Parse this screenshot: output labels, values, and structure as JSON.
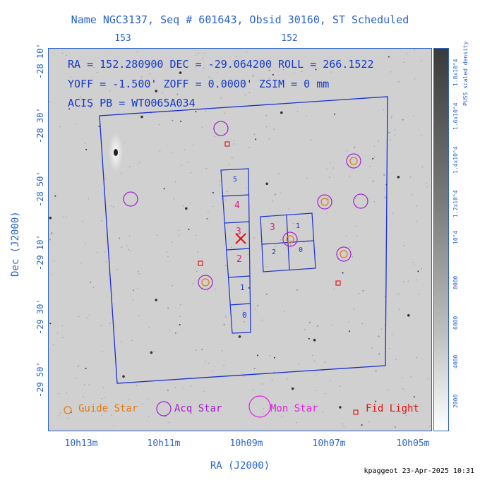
{
  "title": "Name NGC3137, Seq # 601643, Obsid 30160, ST Scheduled",
  "top_axis": [
    "153",
    "152"
  ],
  "bottom_axis": [
    "10h13m",
    "10h11m",
    "10h09m",
    "10h07m",
    "10h05m"
  ],
  "left_axis": [
    "-28 10'",
    "-28 30'",
    "-28 50'",
    "-29 10'",
    "-29 30'",
    "-29 50'"
  ],
  "y_axis_label": "Dec (J2000)",
  "x_axis_label": "RA (J2000)",
  "info": {
    "line1": "RA = 152.280900    DEC = -29.064200   ROLL = 266.1522",
    "line2": "YOFF =  -1.500'    ZOFF =  0.0000'    ZSIM = 0 mm",
    "line3": "ACIS PB = WT0065A034"
  },
  "chips": [
    "5",
    "4",
    "3",
    "2",
    "1",
    "0",
    "3",
    "1",
    "2",
    "0"
  ],
  "colorbar": {
    "label": "PUSS scaled density",
    "ticks": [
      "1.8x10^4",
      "1.6x10^4",
      "1.4x10^4",
      "1.2x10^4",
      "10^4",
      "8000",
      "6000",
      "4000",
      "2000"
    ]
  },
  "legend": {
    "guide": "Guide Star",
    "acq": "Acq Star",
    "mon": "Mon Star",
    "fid": "Fid Light"
  },
  "colors": {
    "axis": "#2a63c9",
    "chip_outline": "#1a2fd0",
    "guide": "#e07a10",
    "acq": "#a020d0",
    "mon": "#e020e0",
    "fid": "#e01010"
  },
  "footer": "kpaggeot 23-Apr-2025 10:31"
}
